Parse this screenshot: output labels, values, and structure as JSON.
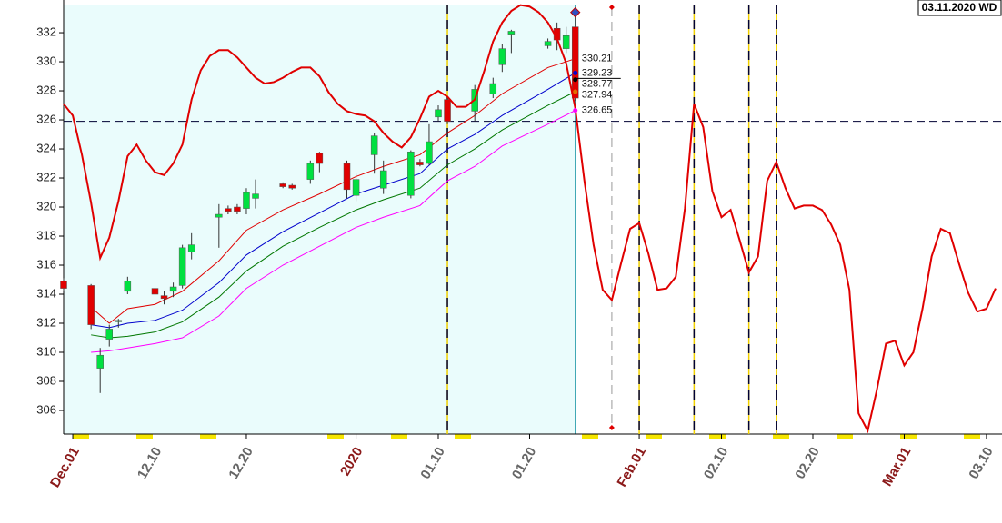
{
  "chart_data": {
    "type": "candlestick",
    "date_label": "03.11.2020 WD",
    "xlim": [
      -1,
      101.7
    ],
    "ylim": [
      304.375,
      333.94
    ],
    "yticks": [
      306,
      308,
      310,
      312,
      314,
      316,
      318,
      320,
      322,
      324,
      326,
      328,
      330,
      332
    ],
    "xticks": [
      {
        "value": 0,
        "label": "Dec.01"
      },
      {
        "value": 9,
        "label": "12.10"
      },
      {
        "value": 19,
        "label": "12.20"
      },
      {
        "value": 31,
        "label": "2020"
      },
      {
        "value": 40,
        "label": "01.10"
      },
      {
        "value": 50,
        "label": "01.20"
      },
      {
        "value": 62,
        "label": "Feb.01"
      },
      {
        "value": 71,
        "label": "02.10"
      },
      {
        "value": 81,
        "label": "02.20"
      },
      {
        "value": 91,
        "label": "Mar.01"
      },
      {
        "value": 100,
        "label": "03.10"
      }
    ],
    "xtick_colors": [
      "#8b1a1a",
      "#666666",
      "#666666",
      "#8b1a1a",
      "#666666",
      "#666666",
      "#8b1a1a",
      "#666666",
      "#666666",
      "#8b1a1a",
      "#666666"
    ],
    "shade_end": 55,
    "shade_color": "#eafcfc",
    "candles": {
      "up_color": "#00e040",
      "down_color": "#e00000",
      "x": [
        -1,
        2,
        3,
        4,
        5,
        6,
        9,
        10,
        11,
        12,
        13,
        16,
        17,
        18,
        19,
        20,
        23,
        24,
        26,
        27,
        30,
        31,
        33,
        34,
        37,
        38,
        39,
        40,
        41,
        44,
        46,
        47,
        48,
        52,
        53,
        54,
        55
      ],
      "open": [
        314.9,
        314.6,
        308.9,
        310.9,
        312.1,
        314.2,
        314.4,
        313.9,
        314.2,
        314.6,
        316.9,
        319.3,
        319.9,
        320.0,
        319.9,
        320.6,
        321.6,
        321.5,
        321.9,
        323.7,
        323.0,
        320.8,
        323.6,
        321.3,
        320.8,
        323.1,
        323.0,
        326.2,
        327.4,
        326.6,
        327.8,
        329.8,
        331.9,
        331.1,
        332.3,
        330.9,
        332.4
      ],
      "high": [
        315.1,
        314.7,
        310.3,
        311.9,
        312.3,
        315.2,
        314.8,
        314.2,
        314.8,
        317.4,
        318.2,
        320.2,
        320.1,
        320.2,
        321.3,
        321.9,
        321.7,
        321.6,
        323.2,
        323.8,
        323.2,
        322.3,
        325.1,
        323.2,
        323.9,
        323.3,
        325.7,
        327.0,
        327.5,
        328.4,
        328.9,
        331.2,
        332.2,
        331.6,
        332.7,
        332.4,
        333.4
      ],
      "low": [
        314.2,
        311.6,
        307.2,
        310.4,
        311.7,
        314.0,
        313.5,
        313.3,
        313.8,
        314.4,
        316.4,
        317.2,
        319.5,
        319.5,
        319.5,
        319.9,
        321.3,
        321.2,
        321.6,
        322.4,
        320.6,
        320.4,
        322.3,
        320.9,
        320.6,
        322.8,
        322.9,
        325.9,
        325.7,
        325.9,
        327.5,
        329.3,
        330.6,
        330.9,
        330.8,
        330.6,
        327.3
      ],
      "close": [
        314.4,
        311.9,
        309.8,
        311.6,
        312.2,
        314.9,
        314.0,
        313.7,
        314.5,
        317.2,
        317.4,
        319.5,
        319.7,
        319.7,
        321.0,
        320.9,
        321.4,
        321.3,
        323.0,
        323.0,
        321.2,
        321.9,
        324.9,
        322.5,
        323.8,
        322.9,
        324.5,
        326.7,
        325.9,
        328.1,
        328.5,
        330.9,
        332.1,
        331.4,
        331.5,
        331.8,
        327.5
      ]
    },
    "band_x": [
      2,
      4,
      6,
      9,
      12,
      16,
      19,
      23,
      27,
      31,
      34,
      38,
      41,
      44,
      47,
      52,
      55
    ],
    "bands": [
      {
        "color": "#e00000",
        "values": [
          313.1,
          312.0,
          313.0,
          313.3,
          314.2,
          316.3,
          318.4,
          319.8,
          320.9,
          322.1,
          322.8,
          323.6,
          325.1,
          326.3,
          327.8,
          329.6,
          330.21
        ]
      },
      {
        "color": "#0000cc",
        "values": [
          311.9,
          311.7,
          312.0,
          312.2,
          312.9,
          314.8,
          316.7,
          318.3,
          319.6,
          320.9,
          321.5,
          322.3,
          324.0,
          325.0,
          326.3,
          328.1,
          329.23
        ]
      },
      {
        "color": "#007700",
        "values": [
          311.2,
          311.0,
          311.1,
          311.4,
          312.1,
          313.8,
          315.6,
          317.3,
          318.6,
          319.8,
          320.5,
          321.3,
          322.9,
          324.0,
          325.3,
          327.0,
          327.94
        ]
      },
      {
        "color": "#ff00ff",
        "values": [
          310.0,
          310.1,
          310.3,
          310.6,
          311.0,
          312.5,
          314.4,
          316.0,
          317.3,
          318.6,
          319.3,
          320.1,
          321.8,
          322.8,
          324.2,
          325.7,
          326.65
        ]
      }
    ],
    "levels": {
      "x": 55,
      "values": [
        330.21,
        329.23,
        328.77,
        327.94,
        326.65
      ],
      "colors": [
        "#e00000",
        "#0000cc",
        "#000000",
        "#e07000",
        "#ff00ff"
      ]
    },
    "marker": {
      "x": 55,
      "value": 333.4,
      "color": "#3050c0"
    },
    "cycle": {
      "color": "#e00000",
      "x": [
        -1,
        0,
        1,
        2,
        3,
        4,
        5,
        6,
        7,
        8,
        9,
        10,
        11,
        12,
        13,
        14,
        15,
        16,
        17,
        18,
        19,
        20,
        21,
        22,
        23,
        24,
        25,
        26,
        27,
        28,
        29,
        30,
        31,
        32,
        33,
        34,
        35,
        36,
        37,
        38,
        39,
        40,
        41,
        42,
        43,
        44,
        45,
        46,
        47,
        48,
        49,
        50,
        51,
        52,
        53,
        54,
        55,
        56,
        57,
        58,
        59,
        60,
        61,
        62,
        63,
        64,
        65,
        66,
        67,
        68,
        69,
        70,
        71,
        72,
        73,
        74,
        75,
        76,
        77,
        78,
        79,
        80,
        81,
        82,
        83,
        84,
        85,
        86,
        87,
        88,
        89,
        90,
        91,
        92,
        93,
        94,
        95,
        96,
        97,
        98,
        99,
        100,
        101
      ],
      "values": [
        327.1,
        326.3,
        323.6,
        320.3,
        316.5,
        317.9,
        320.4,
        323.5,
        324.3,
        323.2,
        322.4,
        322.2,
        323.0,
        324.3,
        327.4,
        329.4,
        330.4,
        330.8,
        330.8,
        330.3,
        329.6,
        328.9,
        328.5,
        328.6,
        328.9,
        329.3,
        329.6,
        329.6,
        329.0,
        327.9,
        327.1,
        326.6,
        326.4,
        326.3,
        325.9,
        325.1,
        324.5,
        324.1,
        324.8,
        326.1,
        327.6,
        328.0,
        327.6,
        326.9,
        326.9,
        327.4,
        329.3,
        331.4,
        332.7,
        333.5,
        333.9,
        333.8,
        333.4,
        332.7,
        331.6,
        329.9,
        326.8,
        321.8,
        317.4,
        314.3,
        313.6,
        316.1,
        318.5,
        318.9,
        316.8,
        314.3,
        314.4,
        315.2,
        319.9,
        327.1,
        325.5,
        321.1,
        319.3,
        319.8,
        317.7,
        315.5,
        316.6,
        321.8,
        323.1,
        321.3,
        319.9,
        320.1,
        320.1,
        319.8,
        318.8,
        317.4,
        314.3,
        305.8,
        304.6,
        307.4,
        310.6,
        310.8,
        309.1,
        310.0,
        313.0,
        316.6,
        318.5,
        318.2,
        316.1,
        314.1,
        312.8,
        313.0,
        314.4
      ]
    },
    "hline": 325.9,
    "vlines": [
      41,
      62,
      68,
      74,
      77
    ],
    "vline_gray": 59
  }
}
